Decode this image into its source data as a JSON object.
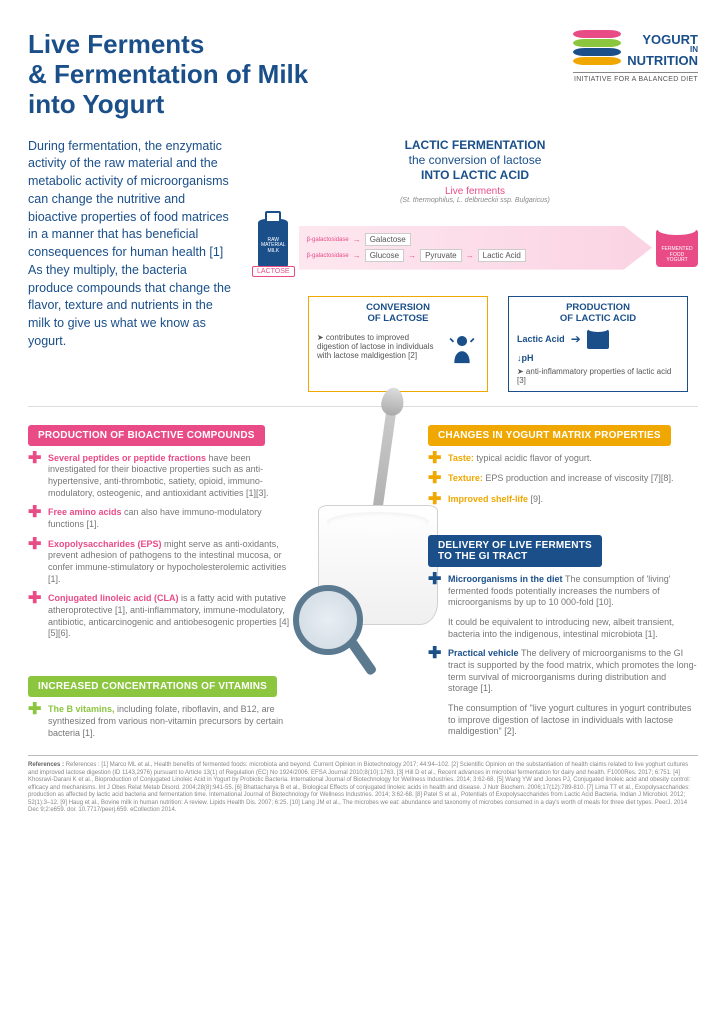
{
  "title": "Live Ferments\n& Fermentation of Milk\ninto Yogurt",
  "logo": {
    "name": "YOGURT",
    "in": "IN",
    "nutrition": "NUTRITION",
    "tagline": "INITIATIVE FOR A BALANCED DIET",
    "chip_colors": [
      "#e94b87",
      "#8cc63f",
      "#1a4f8a",
      "#f0a800"
    ]
  },
  "intro": "During fermentation, the enzymatic activity of the raw material and the metabolic activity of microorganisms can change the nutritive and bioactive properties of food matrices in a manner that has beneficial consequences for human health [1]\nAs they multiply, the bacteria produce compounds that change the flavor, texture and nutrients in the milk to give us what we know as yogurt.",
  "lactic": {
    "title_l1": "LACTIC FERMENTATION",
    "title_l2": "the conversion of lactose",
    "title_l3": "INTO LACTIC ACID",
    "ferments": "Live ferments",
    "ferments_sub": "(St. thermophilus, L. delbrueckii ssp. Bulgaricus)",
    "bottle": "RAW\nMATERIAL\nMILK",
    "lactose": "LACTOSE",
    "enzyme": "β-galactosidase",
    "path1": [
      "Galactose"
    ],
    "path2": [
      "Glucose",
      "Pyruvate",
      "Lactic Acid"
    ],
    "cup": "FERMENTED\nFOOD\nYOGURT"
  },
  "box1": {
    "title": "CONVERSION\nOF LACTOSE",
    "text": "➤ contributes to improved digestion of lactose in individuals with lactose maldigestion [2]"
  },
  "box2": {
    "title": "PRODUCTION\nOF LACTIC ACID",
    "lactic": "Lactic Acid",
    "ph": "↓pH",
    "text": "➤ anti-inflammatory properties of lactic acid [3]"
  },
  "sections": {
    "bioactive": {
      "header": "PRODUCTION OF BIOACTIVE COMPOUNDS",
      "color": "#e94b87",
      "items": [
        {
          "title": "Several peptides or peptide fractions",
          "body": "have been investigated for their bioactive properties such as anti-hypertensive, anti-thrombotic, satiety, opioid, immuno-modulatory, osteogenic, and antioxidant activities [1][3]."
        },
        {
          "title": "Free amino acids",
          "body": "can also have immuno-modulatory functions [1]."
        },
        {
          "title": "Exopolysaccharides (EPS)",
          "body": "might serve as anti-oxidants, prevent adhesion of pathogens to the intestinal mucosa, or confer immune-stimulatory or hypocholesterolemic activities [1]."
        },
        {
          "title": "Conjugated linoleic acid (CLA)",
          "body": "is a fatty acid with putative atheroprotective [1], anti-inflammatory, immune-modulatory, antibiotic, anticarcinogenic and antiobesogenic properties [4][5][6]."
        }
      ]
    },
    "matrix": {
      "header": "CHANGES IN YOGURT MATRIX PROPERTIES",
      "color": "#f0a800",
      "items": [
        {
          "title": "Taste:",
          "body": "typical acidic flavor of yogurt."
        },
        {
          "title": "Texture:",
          "body": "EPS production and increase of viscosity [7][8]."
        },
        {
          "title": "Improved shelf-life",
          "body": "[9]."
        }
      ]
    },
    "delivery": {
      "header": "DELIVERY OF LIVE FERMENTS\nTO THE GI TRACT",
      "color": "#1a4f8a",
      "items": [
        {
          "title": "Microorganisms in the diet",
          "body": "The consumption of 'living' fermented foods potentially increases the numbers of microorganisms by up to 10 000-fold [10]."
        },
        {
          "title": "",
          "body": "It could be equivalent to introducing new, albeit transient, bacteria into the indigenous, intestinal microbiota [1]."
        },
        {
          "title": "Practical vehicle",
          "body": "The delivery of microorganisms to the GI tract is supported by the food matrix, which promotes the long-term survival of microorganisms during distribution and storage [1]."
        },
        {
          "title": "",
          "body": "The consumption of \"live yogurt cultures in yogurt contributes to improve digestion of lactose in individuals with lactose maldigestion\" [2]."
        }
      ]
    },
    "vitamins": {
      "header": "INCREASED CONCENTRATIONS OF VITAMINS",
      "color": "#8cc63f",
      "items": [
        {
          "title": "The B vitamins,",
          "body": "including folate, riboflavin, and B12, are synthesized from various non-vitamin precursors by certain bacteria [1]."
        }
      ]
    }
  },
  "references": "References : [1] Marco ML et al., Health benefits of fermented foods: microbiota and beyond. Current Opinion in Biotechnology 2017; 44:94–102. [2] Scientific Opinion on the substantiation of health claims related to live yoghurt cultures and improved lactose digestion (ID 1143,2976) pursuant to Article 13(1) of Regulation (EC) No 1924/2006. EFSA Journal 2010;8(10):1763. [3] Hill D et al., Recent advances in microbial fermentation for dairy and health. F1000Res. 2017; 6:751. [4] Khosravi-Darani K et al., Bioproduction of Conjugated Linoleic Acid in Yogurt by Probiotic Bacteria. International Journal of Biotechnology for Wellness Industries. 2014; 3:62-68. [5] Wang YW and Jones PJ, Conjugated linoleic acid and obesity control: efficacy and mechanisms. Int J Obes Relat Metab Disord. 2004;28(8):941-55. [6] Bhattacharya B et al., Biological Effects of conjugated linoleic acids in health and disease. J Nutr Biochem. 2006;17(12):789-810. [7] Lima TT et al., Exopolysaccharides: production as affected by lactic acid bacteria and fermentation time. International Journal of Biotechnology for Wellness Industries. 2014; 3:62-68. [8] Patel S et al., Potentials of Exopolysaccharides from Lactic Acid Bacteria. Indian J Microbiol. 2012; 52(1):3–12. [9] Haug et al., Bovine milk in human nutrition: A review. Lipids Health Dis. 2007; 6:25. [10] Lang JM et al., The microbes we eat: abundance and taxonomy of microbes consumed in a day's worth of meals for three diet types. PeerJ. 2014 Dec 9;2:e659. doi: 10.7717/peerj.659. eCollection 2014."
}
